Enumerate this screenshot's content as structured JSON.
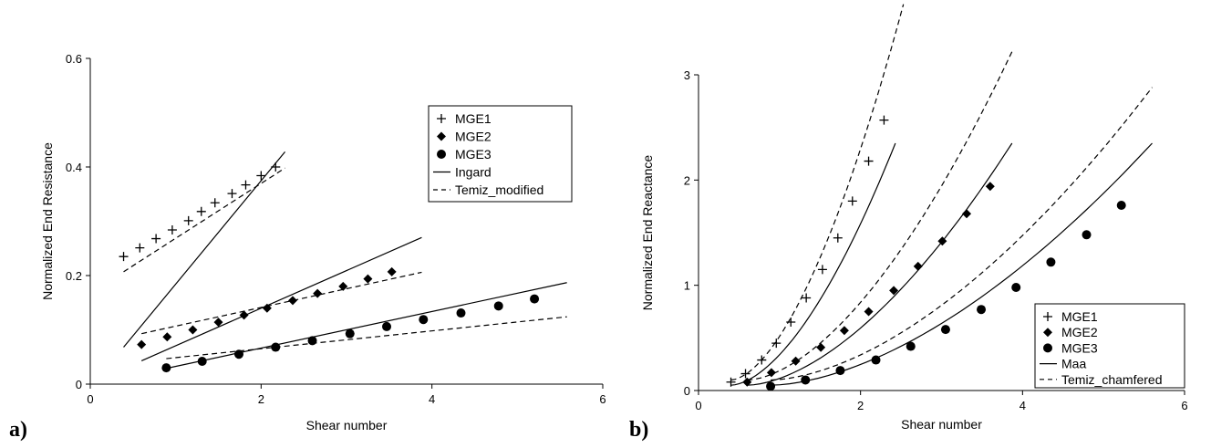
{
  "chart_data": [
    {
      "panel_label": "a)",
      "type": "scatter",
      "xlabel": "Shear number",
      "ylabel": "Normalized End Resistance",
      "xlim": [
        0,
        6
      ],
      "ylim": [
        0,
        0.6
      ],
      "xticks": [
        "0",
        "2",
        "4",
        "6"
      ],
      "yticks": [
        "0",
        "0.2",
        "0.4",
        "0.6"
      ],
      "legend_position": "top-right",
      "series": [
        {
          "name": "MGE1",
          "kind": "points",
          "marker": "plus",
          "x": [
            0.39,
            0.58,
            0.77,
            0.96,
            1.15,
            1.3,
            1.46,
            1.66,
            1.82,
            2.0,
            2.17
          ],
          "y": [
            0.235,
            0.251,
            0.268,
            0.284,
            0.301,
            0.318,
            0.334,
            0.351,
            0.367,
            0.384,
            0.4
          ]
        },
        {
          "name": "MGE2",
          "kind": "points",
          "marker": "diamond",
          "x": [
            0.6,
            0.9,
            1.2,
            1.5,
            1.8,
            2.07,
            2.37,
            2.66,
            2.96,
            3.25,
            3.53
          ],
          "y": [
            0.073,
            0.087,
            0.1,
            0.114,
            0.127,
            0.14,
            0.154,
            0.167,
            0.18,
            0.194,
            0.207
          ]
        },
        {
          "name": "MGE3",
          "kind": "points",
          "marker": "circle",
          "x": [
            0.89,
            1.31,
            1.74,
            2.17,
            2.6,
            3.04,
            3.47,
            3.9,
            4.34,
            4.78,
            5.2
          ],
          "y": [
            0.03,
            0.042,
            0.055,
            0.068,
            0.08,
            0.093,
            0.106,
            0.119,
            0.131,
            0.144,
            0.157
          ]
        },
        {
          "name": "Ingard",
          "kind": "line",
          "dash": "solid",
          "segments": [
            {
              "x": [
                0.39,
                2.28
              ],
              "y": [
                0.068,
                0.428
              ]
            },
            {
              "x": [
                0.6,
                3.88
              ],
              "y": [
                0.043,
                0.27
              ]
            },
            {
              "x": [
                0.89,
                5.58
              ],
              "y": [
                0.029,
                0.187
              ]
            }
          ]
        },
        {
          "name": "Temiz_modified",
          "kind": "line",
          "dash": "dashed",
          "segments": [
            {
              "x": [
                0.39,
                2.28
              ],
              "y": [
                0.207,
                0.398
              ]
            },
            {
              "x": [
                0.6,
                3.88
              ],
              "y": [
                0.093,
                0.206
              ]
            },
            {
              "x": [
                0.89,
                5.58
              ],
              "y": [
                0.047,
                0.124
              ]
            }
          ]
        }
      ]
    },
    {
      "panel_label": "b)",
      "type": "scatter",
      "xlabel": "Shear number",
      "ylabel": "Normalized End Reactance",
      "xlim": [
        0,
        6
      ],
      "ylim": [
        0,
        3
      ],
      "xticks": [
        "0",
        "2",
        "4",
        "6"
      ],
      "yticks": [
        "0",
        "1",
        "2",
        "3"
      ],
      "legend_position": "bottom-right",
      "series": [
        {
          "name": "MGE1",
          "kind": "points",
          "marker": "plus",
          "x": [
            0.4,
            0.58,
            0.78,
            0.96,
            1.14,
            1.33,
            1.53,
            1.72,
            1.9,
            2.1,
            2.29
          ],
          "y": [
            0.08,
            0.16,
            0.29,
            0.45,
            0.65,
            0.88,
            1.15,
            1.45,
            1.8,
            2.18,
            2.57
          ]
        },
        {
          "name": "MGE2",
          "kind": "points",
          "marker": "diamond",
          "x": [
            0.6,
            0.9,
            1.2,
            1.51,
            1.8,
            2.1,
            2.41,
            2.71,
            3.01,
            3.31,
            3.6
          ],
          "y": [
            0.08,
            0.17,
            0.28,
            0.41,
            0.57,
            0.75,
            0.95,
            1.18,
            1.42,
            1.68,
            1.94
          ]
        },
        {
          "name": "MGE3",
          "kind": "points",
          "marker": "circle",
          "x": [
            0.89,
            1.32,
            1.75,
            2.19,
            2.62,
            3.05,
            3.49,
            3.92,
            4.35,
            4.79,
            5.22
          ],
          "y": [
            0.04,
            0.1,
            0.19,
            0.29,
            0.42,
            0.58,
            0.77,
            0.98,
            1.22,
            1.48,
            1.76
          ]
        },
        {
          "name": "Maa",
          "kind": "curve",
          "dash": "solid",
          "exponent": 1.7,
          "segments": [
            {
              "x0": 0.4,
              "x1": 2.43,
              "y0": 0.05,
              "y1": 2.35
            },
            {
              "x0": 0.6,
              "x1": 3.87,
              "y0": 0.05,
              "y1": 2.35
            },
            {
              "x0": 0.89,
              "x1": 5.6,
              "y0": 0.05,
              "y1": 2.35
            }
          ]
        },
        {
          "name": "Temiz_chamfered",
          "kind": "curve",
          "dash": "dashed",
          "exponent": 1.7,
          "segments": [
            {
              "x0": 0.4,
              "x1": 2.53,
              "y0": 0.1,
              "y1": 3.67
            },
            {
              "x0": 0.6,
              "x1": 3.87,
              "y0": 0.1,
              "y1": 3.22
            },
            {
              "x0": 0.89,
              "x1": 5.6,
              "y0": 0.1,
              "y1": 2.88
            }
          ]
        }
      ]
    }
  ]
}
